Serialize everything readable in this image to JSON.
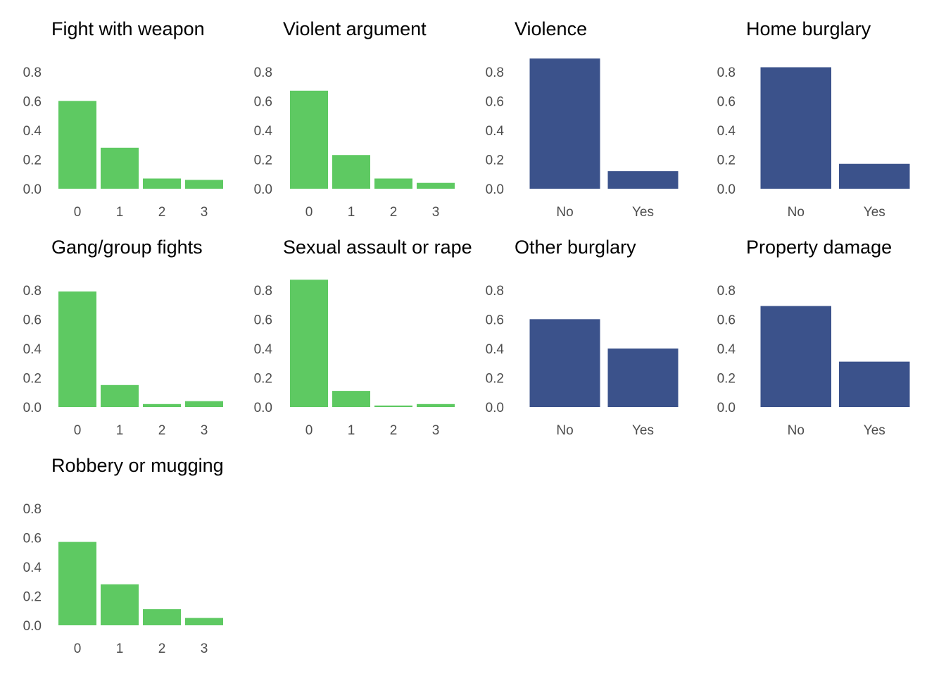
{
  "colors": {
    "numeric": "#5ec962",
    "binary": "#3b528b"
  },
  "chart_data": [
    {
      "type": "bar",
      "title": "Fight with weapon",
      "categories": [
        "0",
        "1",
        "2",
        "3"
      ],
      "values": [
        0.6,
        0.28,
        0.07,
        0.06
      ],
      "color": "#5ec962",
      "ylim": [
        0,
        0.9
      ],
      "yticks": [
        "0.0",
        "0.2",
        "0.4",
        "0.6",
        "0.8"
      ],
      "grid": false
    },
    {
      "type": "bar",
      "title": "Violent argument",
      "categories": [
        "0",
        "1",
        "2",
        "3"
      ],
      "values": [
        0.67,
        0.23,
        0.07,
        0.04
      ],
      "color": "#5ec962",
      "ylim": [
        0,
        0.9
      ],
      "yticks": [
        "0.0",
        "0.2",
        "0.4",
        "0.6",
        "0.8"
      ],
      "grid": false
    },
    {
      "type": "bar",
      "title": "Violence",
      "categories": [
        "No",
        "Yes"
      ],
      "values": [
        0.89,
        0.12
      ],
      "color": "#3b528b",
      "ylim": [
        0,
        0.9
      ],
      "yticks": [
        "0.0",
        "0.2",
        "0.4",
        "0.6",
        "0.8"
      ],
      "grid": false
    },
    {
      "type": "bar",
      "title": "Home burglary",
      "categories": [
        "No",
        "Yes"
      ],
      "values": [
        0.83,
        0.17
      ],
      "color": "#3b528b",
      "ylim": [
        0,
        0.9
      ],
      "yticks": [
        "0.0",
        "0.2",
        "0.4",
        "0.6",
        "0.8"
      ],
      "grid": false
    },
    {
      "type": "bar",
      "title": "Gang/group fights",
      "categories": [
        "0",
        "1",
        "2",
        "3"
      ],
      "values": [
        0.79,
        0.15,
        0.02,
        0.04
      ],
      "color": "#5ec962",
      "ylim": [
        0,
        0.9
      ],
      "yticks": [
        "0.0",
        "0.2",
        "0.4",
        "0.6",
        "0.8"
      ],
      "grid": false
    },
    {
      "type": "bar",
      "title": "Sexual assault or rape",
      "categories": [
        "0",
        "1",
        "2",
        "3"
      ],
      "values": [
        0.87,
        0.11,
        0.01,
        0.02
      ],
      "color": "#5ec962",
      "ylim": [
        0,
        0.9
      ],
      "yticks": [
        "0.0",
        "0.2",
        "0.4",
        "0.6",
        "0.8"
      ],
      "grid": false
    },
    {
      "type": "bar",
      "title": "Other burglary",
      "categories": [
        "No",
        "Yes"
      ],
      "values": [
        0.6,
        0.4
      ],
      "color": "#3b528b",
      "ylim": [
        0,
        0.9
      ],
      "yticks": [
        "0.0",
        "0.2",
        "0.4",
        "0.6",
        "0.8"
      ],
      "grid": false
    },
    {
      "type": "bar",
      "title": "Property damage",
      "categories": [
        "No",
        "Yes"
      ],
      "values": [
        0.69,
        0.31
      ],
      "color": "#3b528b",
      "ylim": [
        0,
        0.9
      ],
      "yticks": [
        "0.0",
        "0.2",
        "0.4",
        "0.6",
        "0.8"
      ],
      "grid": false
    },
    {
      "type": "bar",
      "title": "Robbery or mugging",
      "categories": [
        "0",
        "1",
        "2",
        "3"
      ],
      "values": [
        0.57,
        0.28,
        0.11,
        0.05
      ],
      "color": "#5ec962",
      "ylim": [
        0,
        0.9
      ],
      "yticks": [
        "0.0",
        "0.2",
        "0.4",
        "0.6",
        "0.8"
      ],
      "grid": false
    }
  ]
}
